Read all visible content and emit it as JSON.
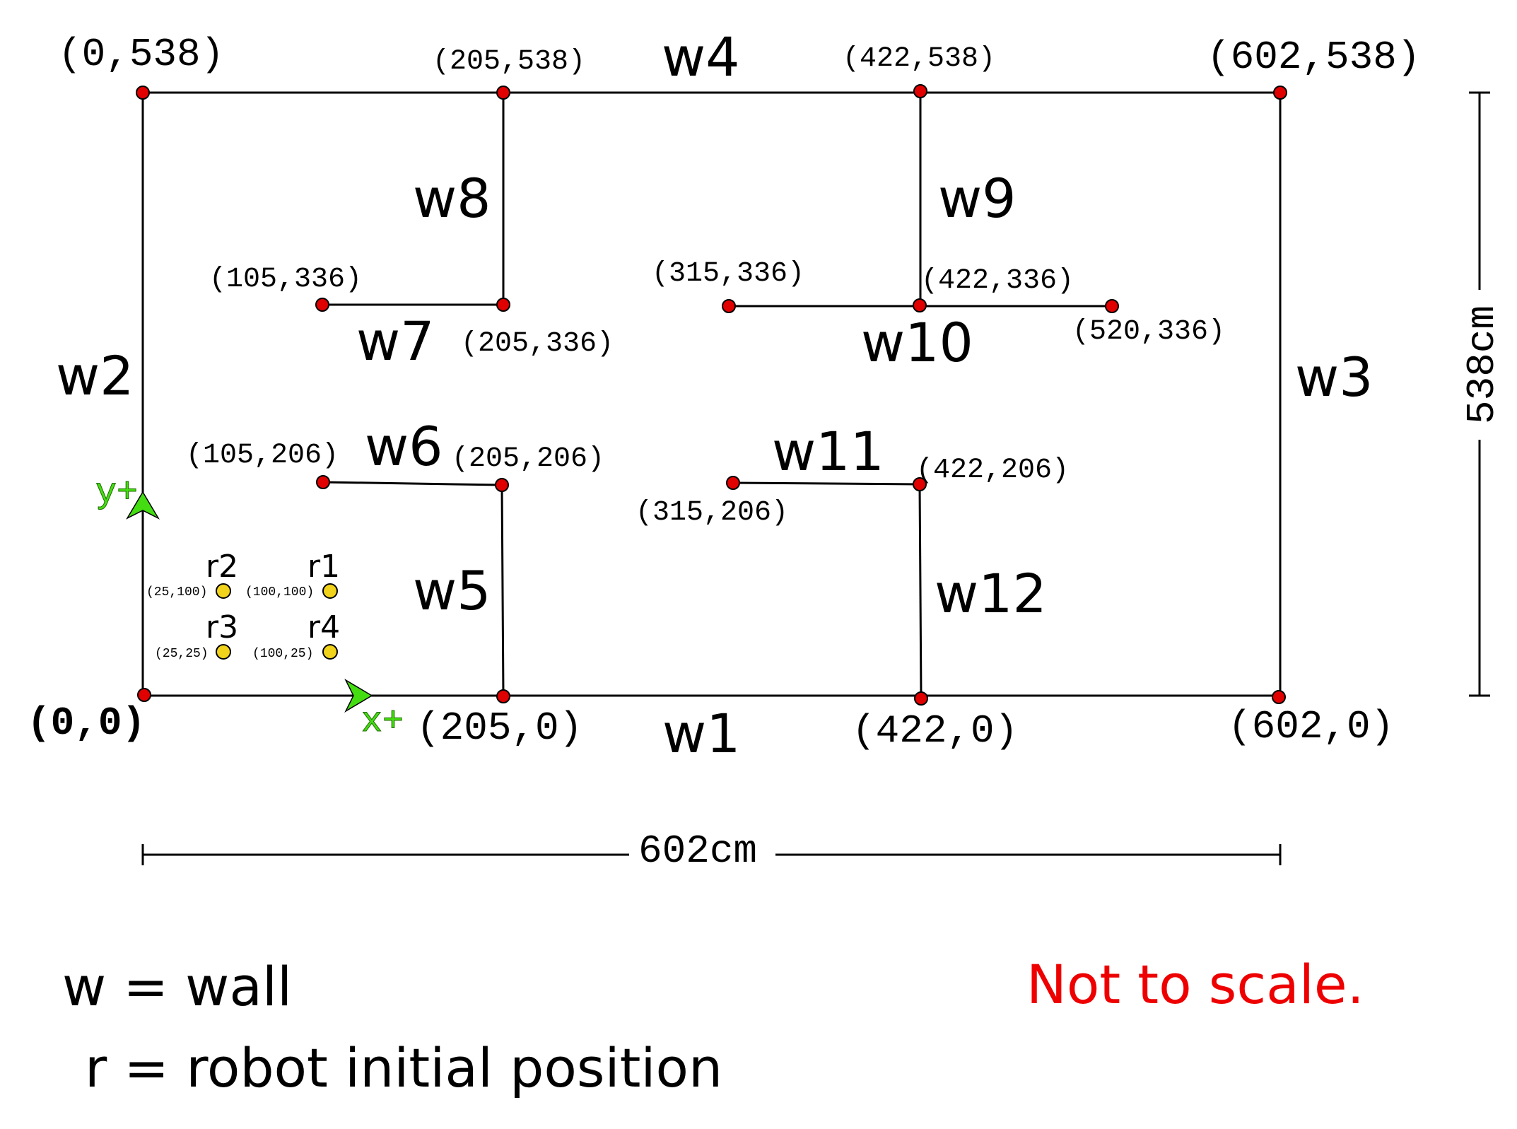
{
  "diagram": {
    "wall_labels": {
      "w1": "w1",
      "w2": "w2",
      "w3": "w3",
      "w4": "w4",
      "w5": "w5",
      "w6": "w6",
      "w7": "w7",
      "w8": "w8",
      "w9": "w9",
      "w10": "w10",
      "w11": "w11",
      "w12": "w12"
    },
    "point_labels": {
      "p0_538": "(0,538)",
      "p205_538": "(205,538)",
      "p422_538": "(422,538)",
      "p602_538": "(602,538)",
      "p105_336": "(105,336)",
      "p205_336": "(205,336)",
      "p315_336": "(315,336)",
      "p422_336": "(422,336)",
      "p520_336": "(520,336)",
      "p105_206": "(105,206)",
      "p205_206": "(205,206)",
      "p315_206": "(315,206)",
      "p422_206": "(422,206)",
      "p0_0": "(0,0)",
      "p205_0": "(205,0)",
      "p422_0": "(422,0)",
      "p602_0": "(602,0)"
    },
    "robots": {
      "r1": {
        "label": "r1",
        "coords": "(100,100)"
      },
      "r2": {
        "label": "r2",
        "coords": "(25,100)"
      },
      "r3": {
        "label": "r3",
        "coords": "(25,25)"
      },
      "r4": {
        "label": "r4",
        "coords": "(100,25)"
      }
    },
    "axes": {
      "x_label": "x+",
      "y_label": "y+"
    },
    "dimensions": {
      "width": "602cm",
      "height": "538cm"
    },
    "legend": {
      "wall": "w = wall",
      "robot": "r = robot initial position",
      "note": "Not to scale."
    },
    "colors": {
      "line": "#000000",
      "point_fill": "#e00000",
      "robot_fill": "#f2d31b",
      "axis_green": "#44dd11",
      "note_red": "#ee0000"
    }
  }
}
